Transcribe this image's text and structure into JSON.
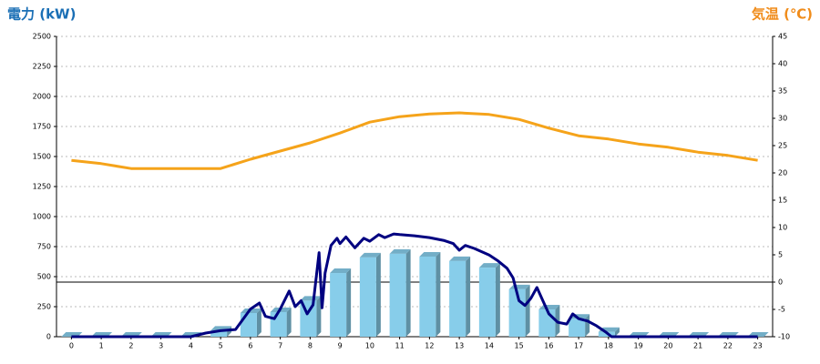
{
  "chart_data": {
    "type": "bar_line",
    "y_title": "電力 (kW)",
    "y2_title": "気温 (℃)",
    "categories": [
      0,
      1,
      2,
      3,
      4,
      5,
      6,
      7,
      8,
      9,
      10,
      11,
      12,
      13,
      14,
      15,
      16,
      17,
      18,
      19,
      20,
      21,
      22,
      23
    ],
    "ylim": [
      0,
      2500
    ],
    "yticks": [
      0,
      250,
      500,
      750,
      1000,
      1250,
      1500,
      1750,
      2000,
      2250,
      2500
    ],
    "y2lim": [
      -10,
      45
    ],
    "y2ticks": [
      -10,
      -5,
      0,
      5,
      10,
      15,
      20,
      25,
      30,
      35,
      40,
      45
    ],
    "grid": true,
    "y2_zero_line": true,
    "series": [
      {
        "kind": "bar",
        "color": "#87cdea",
        "values": [
          0,
          0,
          0,
          0,
          0,
          50,
          197,
          205,
          300,
          530,
          660,
          690,
          667,
          630,
          575,
          395,
          227,
          150,
          40,
          0,
          0,
          0,
          0,
          0
        ]
      },
      {
        "kind": "line",
        "color": "#000080",
        "x": [
          0,
          1,
          2,
          3,
          4,
          4.5,
          5,
          5.5,
          6,
          6.3,
          6.5,
          6.8,
          7,
          7.3,
          7.5,
          7.7,
          7.9,
          8.1,
          8.3,
          8.4,
          8.5,
          8.7,
          8.9,
          9,
          9.2,
          9.5,
          9.8,
          10,
          10.3,
          10.5,
          10.8,
          11,
          11.5,
          12,
          12.5,
          12.8,
          13,
          13.2,
          13.5,
          14,
          14.3,
          14.6,
          14.8,
          15,
          15.2,
          15.4,
          15.6,
          15.8,
          16,
          16.3,
          16.6,
          16.8,
          17,
          17.3,
          17.6,
          17.9,
          18.1,
          19,
          20,
          21,
          22,
          23
        ],
        "values": [
          0,
          0,
          0,
          0,
          0,
          30,
          50,
          60,
          230,
          280,
          170,
          150,
          230,
          380,
          250,
          300,
          190,
          265,
          700,
          240,
          530,
          760,
          820,
          775,
          830,
          740,
          820,
          795,
          850,
          825,
          855,
          850,
          840,
          825,
          800,
          775,
          720,
          760,
          735,
          680,
          630,
          570,
          490,
          300,
          260,
          320,
          410,
          300,
          190,
          120,
          105,
          190,
          150,
          130,
          90,
          40,
          0,
          0,
          0,
          0,
          0,
          0
        ]
      },
      {
        "kind": "line",
        "axis": "y2",
        "color": "#f5a31a",
        "values": [
          22.3,
          21.7,
          20.8,
          20.8,
          20.8,
          20.8,
          22.5,
          24,
          25.5,
          27.3,
          29.3,
          30.3,
          30.8,
          31,
          30.7,
          29.8,
          28.2,
          26.8,
          26.2,
          25.3,
          24.7,
          23.8,
          23.2,
          22.3
        ]
      }
    ]
  }
}
